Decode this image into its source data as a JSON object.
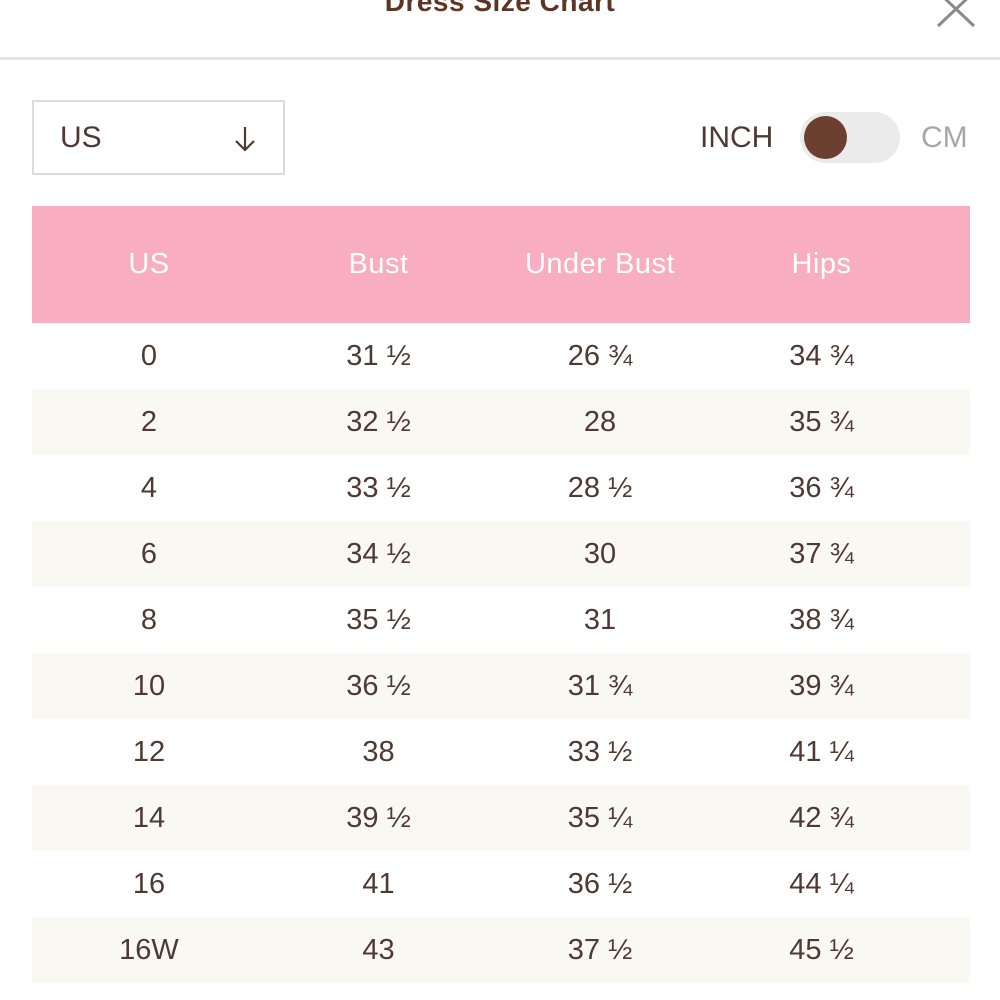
{
  "header": {
    "title": "Dress Size Chart"
  },
  "region_select": {
    "value": "US"
  },
  "unit_toggle": {
    "left_label": "INCH",
    "right_label": "CM",
    "selected": "INCH"
  },
  "table": {
    "headers": [
      "US",
      "Bust",
      "Under Bust",
      "Hips"
    ],
    "rows": [
      [
        "0",
        "31 ½",
        "26 ¾",
        "34 ¾"
      ],
      [
        "2",
        "32 ½",
        "28",
        "35 ¾"
      ],
      [
        "4",
        "33 ½",
        "28 ½",
        "36 ¾"
      ],
      [
        "6",
        "34 ½",
        "30",
        "37 ¾"
      ],
      [
        "8",
        "35 ½",
        "31",
        "38 ¾"
      ],
      [
        "10",
        "36 ½",
        "31 ¾",
        "39 ¾"
      ],
      [
        "12",
        "38",
        "33 ½",
        "41 ¼"
      ],
      [
        "14",
        "39 ½",
        "35 ¼",
        "42 ¾"
      ],
      [
        "16",
        "41",
        "36 ½",
        "44 ¼"
      ],
      [
        "16W",
        "43",
        "37 ½",
        "45 ½"
      ]
    ]
  },
  "colors": {
    "header_bg": "#f8adc1",
    "toggle_knob": "#6b4030",
    "text": "#4e3a33",
    "alt_row": "#faf8f3"
  },
  "icons": {
    "close": "close-icon",
    "dropdown": "arrow-down-icon"
  }
}
